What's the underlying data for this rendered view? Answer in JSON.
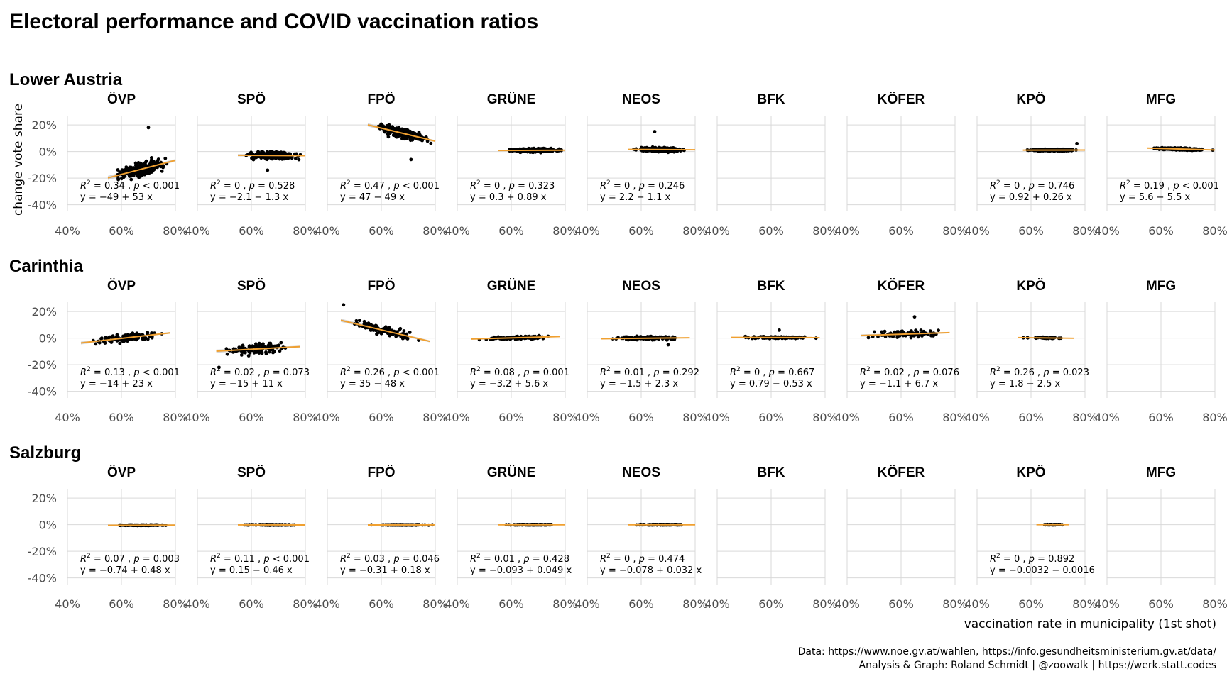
{
  "chart_data": {
    "type": "scatter",
    "title": "Electoral performance and COVID vaccination ratios",
    "xlabel": "vaccination rate in municipality (1st shot)",
    "ylabel": "change vote share",
    "xlim": [
      0.4,
      0.8
    ],
    "ylim": [
      -0.45,
      0.27
    ],
    "x_ticks": [
      0.4,
      0.6,
      0.8
    ],
    "x_tick_labels": [
      "40%",
      "60%",
      "80%"
    ],
    "y_ticks": [
      0.2,
      0.0,
      -0.2,
      -0.4
    ],
    "y_tick_labels": [
      "20%",
      "0%",
      "-20%",
      "-40%"
    ],
    "parties": [
      "ÖVP",
      "SPÖ",
      "FPÖ",
      "GRÜNE",
      "NEOS",
      "BFK",
      "KÖFER",
      "KPÖ",
      "MFG"
    ],
    "caption": [
      "Data: https://www.noe.gv.at/wahlen, https://info.gesundheitsministerium.gv.at/data/",
      "Analysis & Graph: Roland Schmidt | @zoowalk | https://werk.statt.codes"
    ],
    "regions": [
      {
        "name": "Lower Austria",
        "panels": [
          {
            "party": "ÖVP",
            "has_data": true,
            "x_range": [
              0.55,
              0.8
            ],
            "intercept": -0.49,
            "slope": 0.53,
            "spread": 0.045,
            "n": 300,
            "r2": "0.34",
            "p": "< 0.001",
            "eq": "y = −49 + 53 x",
            "outliers": [
              [
                0.7,
                0.18
              ]
            ]
          },
          {
            "party": "SPÖ",
            "has_data": true,
            "x_range": [
              0.55,
              0.8
            ],
            "intercept": -0.021,
            "slope": -0.013,
            "spread": 0.025,
            "n": 300,
            "r2": "0",
            "p": "= 0.528",
            "eq": "y = −2.1 − 1.3 x",
            "outliers": [
              [
                0.66,
                -0.14
              ]
            ]
          },
          {
            "party": "FPÖ",
            "has_data": true,
            "x_range": [
              0.55,
              0.8
            ],
            "intercept": 0.47,
            "slope": -0.49,
            "spread": 0.035,
            "n": 300,
            "r2": "0.47",
            "p": "< 0.001",
            "eq": "y = 47 − 49 x",
            "outliers": [
              [
                0.71,
                -0.06
              ]
            ]
          },
          {
            "party": "GRÜNE",
            "has_data": true,
            "x_range": [
              0.55,
              0.8
            ],
            "intercept": 0.003,
            "slope": 0.0089,
            "spread": 0.012,
            "n": 300,
            "r2": "0",
            "p": "= 0.323",
            "eq": "y = 0.3 + 0.89 x",
            "outliers": []
          },
          {
            "party": "NEOS",
            "has_data": true,
            "x_range": [
              0.55,
              0.8
            ],
            "intercept": 0.022,
            "slope": -0.011,
            "spread": 0.014,
            "n": 300,
            "r2": "0",
            "p": "= 0.246",
            "eq": "y = 2.2 − 1.1 x",
            "outliers": [
              [
                0.65,
                0.15
              ]
            ]
          },
          {
            "party": "BFK",
            "has_data": false
          },
          {
            "party": "KÖFER",
            "has_data": false
          },
          {
            "party": "KPÖ",
            "has_data": true,
            "x_range": [
              0.57,
              0.8
            ],
            "intercept": 0.0092,
            "slope": 0.0026,
            "spread": 0.006,
            "n": 300,
            "r2": "0",
            "p": "= 0.746",
            "eq": "y = 0.92 + 0.26 x",
            "outliers": [
              [
                0.77,
                0.06
              ]
            ]
          },
          {
            "party": "MFG",
            "has_data": true,
            "x_range": [
              0.55,
              0.8
            ],
            "intercept": 0.056,
            "slope": -0.055,
            "spread": 0.007,
            "n": 300,
            "r2": "0.19",
            "p": "< 0.001",
            "eq": "y = 5.6 − 5.5 x",
            "outliers": []
          }
        ]
      },
      {
        "name": "Carinthia",
        "panels": [
          {
            "party": "ÖVP",
            "has_data": true,
            "x_range": [
              0.45,
              0.78
            ],
            "intercept": -0.14,
            "slope": 0.23,
            "spread": 0.03,
            "n": 110,
            "r2": "0.13",
            "p": "< 0.001",
            "eq": "y = −14 + 23 x",
            "outliers": []
          },
          {
            "party": "SPÖ",
            "has_data": true,
            "x_range": [
              0.47,
              0.78
            ],
            "intercept": -0.15,
            "slope": 0.11,
            "spread": 0.035,
            "n": 110,
            "r2": "0.02",
            "p": "= 0.073",
            "eq": "y = −15 + 11 x",
            "outliers": [
              [
                0.48,
                -0.22
              ]
            ]
          },
          {
            "party": "FPÖ",
            "has_data": true,
            "x_range": [
              0.45,
              0.78
            ],
            "intercept": 0.35,
            "slope": -0.48,
            "spread": 0.035,
            "n": 110,
            "r2": "0.26",
            "p": "< 0.001",
            "eq": "y = 35 − 48 x",
            "outliers": [
              [
                0.46,
                0.25
              ]
            ]
          },
          {
            "party": "GRÜNE",
            "has_data": true,
            "x_range": [
              0.45,
              0.78
            ],
            "intercept": -0.032,
            "slope": 0.056,
            "spread": 0.012,
            "n": 110,
            "r2": "0.08",
            "p": "= 0.001",
            "eq": "y = −3.2 + 5.6 x",
            "outliers": []
          },
          {
            "party": "NEOS",
            "has_data": true,
            "x_range": [
              0.45,
              0.78
            ],
            "intercept": -0.015,
            "slope": 0.023,
            "spread": 0.012,
            "n": 110,
            "r2": "0.01",
            "p": "= 0.292",
            "eq": "y = −1.5 + 2.3 x",
            "outliers": [
              [
                0.7,
                -0.05
              ]
            ]
          },
          {
            "party": "BFK",
            "has_data": true,
            "x_range": [
              0.45,
              0.78
            ],
            "intercept": 0.0079,
            "slope": -0.0053,
            "spread": 0.007,
            "n": 110,
            "r2": "0",
            "p": "= 0.667",
            "eq": "y = 0.79 − 0.53 x",
            "outliers": [
              [
                0.63,
                0.06
              ]
            ]
          },
          {
            "party": "KÖFER",
            "has_data": true,
            "x_range": [
              0.45,
              0.78
            ],
            "intercept": -0.011,
            "slope": 0.067,
            "spread": 0.025,
            "n": 110,
            "r2": "0.02",
            "p": "= 0.076",
            "eq": "y = −1.1 + 6.7 x",
            "outliers": [
              [
                0.65,
                0.16
              ]
            ]
          },
          {
            "party": "KPÖ",
            "has_data": true,
            "x_range": [
              0.55,
              0.76
            ],
            "intercept": 0.018,
            "slope": -0.025,
            "spread": 0.004,
            "n": 40,
            "r2": "0.26",
            "p": "= 0.023",
            "eq": "y = 1.8 − 2.5 x",
            "outliers": []
          },
          {
            "party": "MFG",
            "has_data": false
          }
        ]
      },
      {
        "name": "Salzburg",
        "panels": [
          {
            "party": "ÖVP",
            "has_data": true,
            "x_range": [
              0.55,
              0.8
            ],
            "intercept": -0.0074,
            "slope": 0.0048,
            "spread": 0.002,
            "n": 110,
            "r2": "0.07",
            "p": "= 0.003",
            "eq": "y = −0.74 + 0.48 x",
            "outliers": []
          },
          {
            "party": "SPÖ",
            "has_data": true,
            "x_range": [
              0.55,
              0.8
            ],
            "intercept": 0.0015,
            "slope": -0.0046,
            "spread": 0.002,
            "n": 110,
            "r2": "0.11",
            "p": "< 0.001",
            "eq": "y = 0.15 − 0.46 x",
            "outliers": []
          },
          {
            "party": "FPÖ",
            "has_data": true,
            "x_range": [
              0.55,
              0.8
            ],
            "intercept": -0.0031,
            "slope": 0.0018,
            "spread": 0.002,
            "n": 110,
            "r2": "0.03",
            "p": "= 0.046",
            "eq": "y = −0.31 + 0.18 x",
            "outliers": []
          },
          {
            "party": "GRÜNE",
            "has_data": true,
            "x_range": [
              0.55,
              0.8
            ],
            "intercept": -0.00093,
            "slope": 0.00049,
            "spread": 0.002,
            "n": 110,
            "r2": "0.01",
            "p": "= 0.428",
            "eq": "y = −0.093 + 0.049 x",
            "outliers": []
          },
          {
            "party": "NEOS",
            "has_data": true,
            "x_range": [
              0.55,
              0.8
            ],
            "intercept": -0.00078,
            "slope": 0.00032,
            "spread": 0.002,
            "n": 110,
            "r2": "0",
            "p": "= 0.474",
            "eq": "y = −0.078 + 0.032 x",
            "outliers": []
          },
          {
            "party": "BFK",
            "has_data": false
          },
          {
            "party": "KÖFER",
            "has_data": false
          },
          {
            "party": "KPÖ",
            "has_data": true,
            "x_range": [
              0.62,
              0.74
            ],
            "intercept": -3.2e-05,
            "slope": -1.6e-05,
            "spread": 0.002,
            "n": 30,
            "r2": "0",
            "p": "= 0.892",
            "eq": "y = −0.0032 − 0.0016",
            "outliers": []
          },
          {
            "party": "MFG",
            "has_data": false
          }
        ]
      }
    ]
  }
}
